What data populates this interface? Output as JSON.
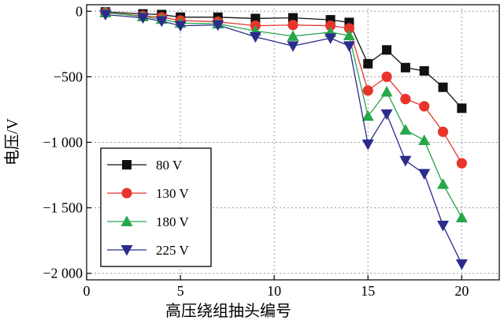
{
  "chart_data": {
    "type": "line",
    "title": "",
    "xlabel": "高压绕组抽头编号",
    "ylabel": "电压/V",
    "xlim": [
      0,
      22
    ],
    "ylim": [
      -2050,
      50
    ],
    "x_ticks": [
      0,
      5,
      10,
      15,
      20
    ],
    "y_ticks": [
      0,
      -500,
      -1000,
      -1500,
      -2000
    ],
    "x_tick_labels": [
      "0",
      "5",
      "10",
      "15",
      "20"
    ],
    "y_tick_labels": [
      "0",
      "−500",
      "−1 000",
      "−1 500",
      "−2 000"
    ],
    "grid": true,
    "legend_position": "bottom-left",
    "series": [
      {
        "name": "80 V",
        "color": "#111111",
        "marker": "square",
        "x": [
          1,
          3,
          4,
          5,
          7,
          9,
          11,
          13,
          14,
          15,
          16,
          17,
          18,
          19,
          20
        ],
        "y": [
          -5,
          -20,
          -25,
          -45,
          -45,
          -55,
          -50,
          -65,
          -85,
          -400,
          -295,
          -430,
          -455,
          -580,
          -740
        ]
      },
      {
        "name": "130 V",
        "color": "#e8352b",
        "marker": "circle",
        "x": [
          1,
          3,
          4,
          5,
          7,
          9,
          11,
          13,
          14,
          15,
          16,
          17,
          18,
          19,
          20
        ],
        "y": [
          -10,
          -35,
          -45,
          -70,
          -80,
          -110,
          -105,
          -110,
          -130,
          -605,
          -500,
          -670,
          -725,
          -920,
          -1160
        ]
      },
      {
        "name": "180 V",
        "color": "#26a84a",
        "marker": "triangle-up",
        "x": [
          1,
          3,
          4,
          5,
          7,
          9,
          11,
          13,
          14,
          15,
          16,
          17,
          18,
          19,
          20
        ],
        "y": [
          -10,
          -40,
          -60,
          -90,
          -95,
          -150,
          -190,
          -160,
          -185,
          -800,
          -615,
          -905,
          -985,
          -1320,
          -1575
        ]
      },
      {
        "name": "225 V",
        "color": "#2b2b8c",
        "marker": "triangle-down",
        "x": [
          1,
          3,
          4,
          5,
          7,
          9,
          11,
          13,
          14,
          15,
          16,
          17,
          18,
          19,
          20
        ],
        "y": [
          -25,
          -50,
          -75,
          -110,
          -105,
          -195,
          -265,
          -205,
          -265,
          -1015,
          -785,
          -1140,
          -1240,
          -1635,
          -1930
        ]
      }
    ]
  }
}
